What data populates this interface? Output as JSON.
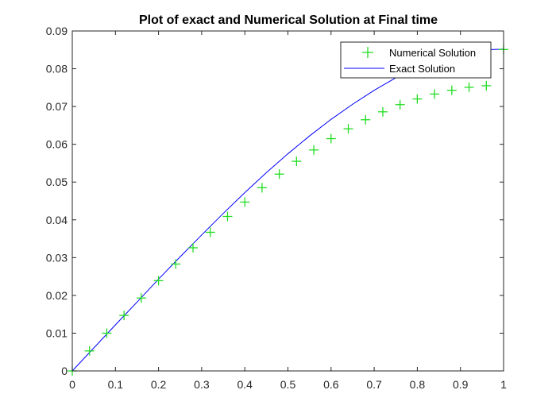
{
  "chart_data": {
    "type": "line",
    "title": "Plot of exact and Numerical Solution at Final time",
    "xlabel": "",
    "ylabel": "",
    "xlim": [
      0,
      1
    ],
    "ylim": [
      0,
      0.09
    ],
    "xticks": [
      0,
      0.1,
      0.2,
      0.3,
      0.4,
      0.5,
      0.6,
      0.7,
      0.8,
      0.9,
      1
    ],
    "xtick_labels": [
      "0",
      "0.1",
      "0.2",
      "0.3",
      "0.4",
      "0.5",
      "0.6",
      "0.7",
      "0.8",
      "0.9",
      "1"
    ],
    "yticks": [
      0,
      0.01,
      0.02,
      0.03,
      0.04,
      0.05,
      0.06,
      0.07,
      0.08,
      0.09
    ],
    "ytick_labels": [
      "0",
      "0.01",
      "0.02",
      "0.03",
      "0.04",
      "0.05",
      "0.06",
      "0.07",
      "0.08",
      "0.09"
    ],
    "grid": false,
    "legend_position": "top-right",
    "series": [
      {
        "name": "Numerical Solution",
        "style": "markers",
        "marker": "plus",
        "color": "#22dd22",
        "x": [
          0,
          0.04,
          0.08,
          0.12,
          0.16,
          0.2,
          0.24,
          0.28,
          0.32,
          0.36,
          0.4,
          0.44,
          0.48,
          0.52,
          0.56,
          0.6,
          0.64,
          0.68,
          0.72,
          0.76,
          0.8,
          0.84,
          0.88,
          0.92,
          0.96,
          1.0
        ],
        "y": [
          0,
          0.0053,
          0.01,
          0.0147,
          0.0193,
          0.0239,
          0.0283,
          0.0326,
          0.0367,
          0.0409,
          0.0447,
          0.0485,
          0.0521,
          0.0555,
          0.0585,
          0.0615,
          0.0641,
          0.0665,
          0.0686,
          0.0705,
          0.072,
          0.0733,
          0.0743,
          0.0751,
          0.0755,
          0.0851
        ]
      },
      {
        "name": "Exact Solution",
        "style": "line",
        "color": "#0000ff",
        "x": [
          0,
          0.05,
          0.1,
          0.15,
          0.2,
          0.25,
          0.3,
          0.35,
          0.4,
          0.45,
          0.5,
          0.55,
          0.6,
          0.65,
          0.7,
          0.75,
          0.8,
          0.85,
          0.9,
          0.95,
          1.0
        ],
        "y": [
          0,
          0.0061,
          0.0122,
          0.0182,
          0.0243,
          0.0302,
          0.036,
          0.0417,
          0.0472,
          0.0525,
          0.0575,
          0.0622,
          0.0666,
          0.0706,
          0.0743,
          0.0776,
          0.0803,
          0.0825,
          0.0841,
          0.085,
          0.0852
        ]
      }
    ]
  }
}
